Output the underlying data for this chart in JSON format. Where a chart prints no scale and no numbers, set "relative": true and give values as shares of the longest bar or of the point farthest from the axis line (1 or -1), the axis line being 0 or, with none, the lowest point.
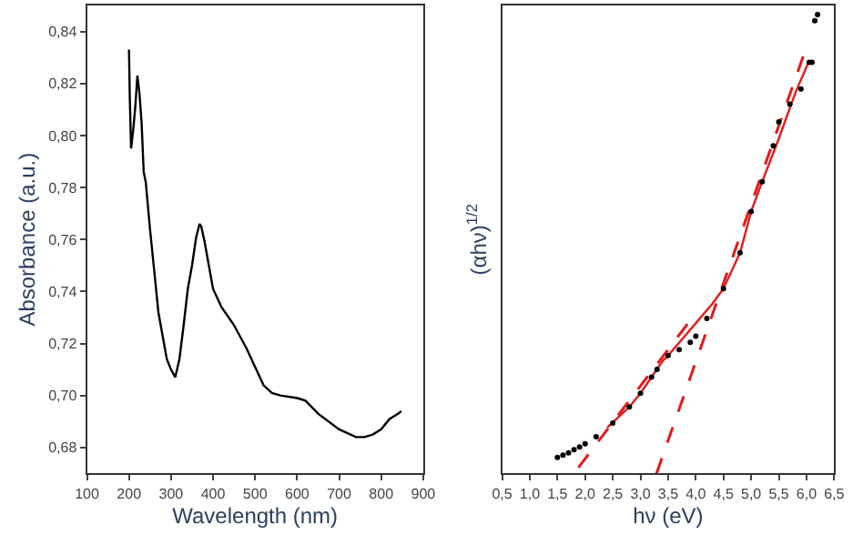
{
  "chart_data": [
    {
      "type": "line",
      "xlabel": "Wavelength (nm)",
      "ylabel": "Absorbance (a.u.)",
      "x": [
        200,
        202,
        205,
        210,
        215,
        220,
        225,
        230,
        235,
        240,
        250,
        260,
        270,
        280,
        290,
        300,
        310,
        320,
        330,
        340,
        350,
        360,
        368,
        372,
        380,
        390,
        400,
        420,
        450,
        480,
        500,
        520,
        540,
        560,
        600,
        620,
        650,
        700,
        740,
        760,
        780,
        800,
        820,
        840,
        848
      ],
      "series": [
        {
          "color": "#000000",
          "values": [
            0.833,
            0.814,
            0.795,
            0.802,
            0.811,
            0.823,
            0.816,
            0.805,
            0.786,
            0.782,
            0.764,
            0.748,
            0.732,
            0.723,
            0.714,
            0.71,
            0.707,
            0.714,
            0.727,
            0.741,
            0.75,
            0.761,
            0.766,
            0.765,
            0.759,
            0.75,
            0.741,
            0.734,
            0.727,
            0.718,
            0.711,
            0.704,
            0.701,
            0.7,
            0.699,
            0.698,
            0.693,
            0.687,
            0.684,
            0.684,
            0.685,
            0.687,
            0.691,
            0.693,
            0.694
          ]
        }
      ],
      "xlim": [
        100,
        900
      ],
      "xticks": [
        100,
        200,
        300,
        400,
        500,
        600,
        700,
        800,
        900
      ],
      "ylim": [
        0.67,
        0.85
      ],
      "yticks": [
        {
          "value": 0.68,
          "label": "0,68"
        },
        {
          "value": 0.7,
          "label": "0,70"
        },
        {
          "value": 0.72,
          "label": "0,72"
        },
        {
          "value": 0.74,
          "label": "0,74"
        },
        {
          "value": 0.76,
          "label": "0,76"
        },
        {
          "value": 0.78,
          "label": "0,78"
        },
        {
          "value": 0.8,
          "label": "0,80"
        },
        {
          "value": 0.82,
          "label": "0,82"
        },
        {
          "value": 0.84,
          "label": "0,84"
        }
      ]
    },
    {
      "type": "scatter",
      "relative": true,
      "xlabel": "hν (eV)",
      "ylabel": "(αhν)$^{1/2}$",
      "tick_labels": "x",
      "series": [
        {
          "type": "scatter",
          "marker": "circle",
          "color": "#000000",
          "x": [
            1.5,
            1.6,
            1.7,
            1.8,
            1.9,
            2.0,
            2.2,
            2.5,
            2.8,
            3.0,
            3.2,
            3.3,
            3.5,
            3.7,
            3.9,
            4.0,
            4.2,
            4.5,
            4.8,
            5.0,
            5.2,
            5.4,
            5.5,
            5.7,
            5.9,
            6.05,
            6.1,
            6.15,
            6.2
          ],
          "values": [
            0.035,
            0.04,
            0.045,
            0.052,
            0.058,
            0.065,
            0.08,
            0.11,
            0.145,
            0.175,
            0.21,
            0.227,
            0.257,
            0.27,
            0.286,
            0.299,
            0.338,
            0.403,
            0.481,
            0.571,
            0.636,
            0.714,
            0.766,
            0.805,
            0.838,
            0.896,
            0.896,
            0.987,
            1.0
          ]
        },
        {
          "type": "line",
          "marker": "none",
          "color": "#e31a1c",
          "line_style": "solid",
          "x": [
            2.4,
            2.8,
            3.0,
            3.2,
            3.4,
            3.5,
            4.3,
            4.5,
            4.8,
            5.0,
            5.2,
            5.5,
            5.8,
            6.05
          ],
          "values": [
            0.1,
            0.145,
            0.175,
            0.21,
            0.245,
            0.257,
            0.37,
            0.403,
            0.481,
            0.571,
            0.636,
            0.73,
            0.83,
            0.9
          ]
        },
        {
          "type": "line",
          "color": "#e31a1c",
          "line_style": "dashed",
          "marker": "none",
          "x": [
            1.88,
            3.87
          ],
          "values": [
            0.013,
            0.329
          ]
        },
        {
          "type": "line",
          "color": "#e31a1c",
          "line_style": "dashed",
          "marker": "none",
          "x": [
            3.29,
            5.94
          ],
          "values": [
            0.0,
            0.909
          ]
        }
      ],
      "xlim": [
        0.5,
        6.5
      ],
      "xticks": [
        {
          "value": 0.5,
          "label": "0,5"
        },
        {
          "value": 1.0,
          "label": "1,0"
        },
        {
          "value": 1.5,
          "label": "1,5"
        },
        {
          "value": 2.0,
          "label": "2,0"
        },
        {
          "value": 2.5,
          "label": "2,5"
        },
        {
          "value": 3.0,
          "label": "3,0"
        },
        {
          "value": 3.5,
          "label": "3,5"
        },
        {
          "value": 4.0,
          "label": "4,0"
        },
        {
          "value": 4.5,
          "label": "4,5"
        },
        {
          "value": 5.0,
          "label": "5,0"
        },
        {
          "value": 5.5,
          "label": "5,5"
        },
        {
          "value": 6.0,
          "label": "6,0"
        },
        {
          "value": 6.5,
          "label": "6,5"
        }
      ]
    }
  ]
}
